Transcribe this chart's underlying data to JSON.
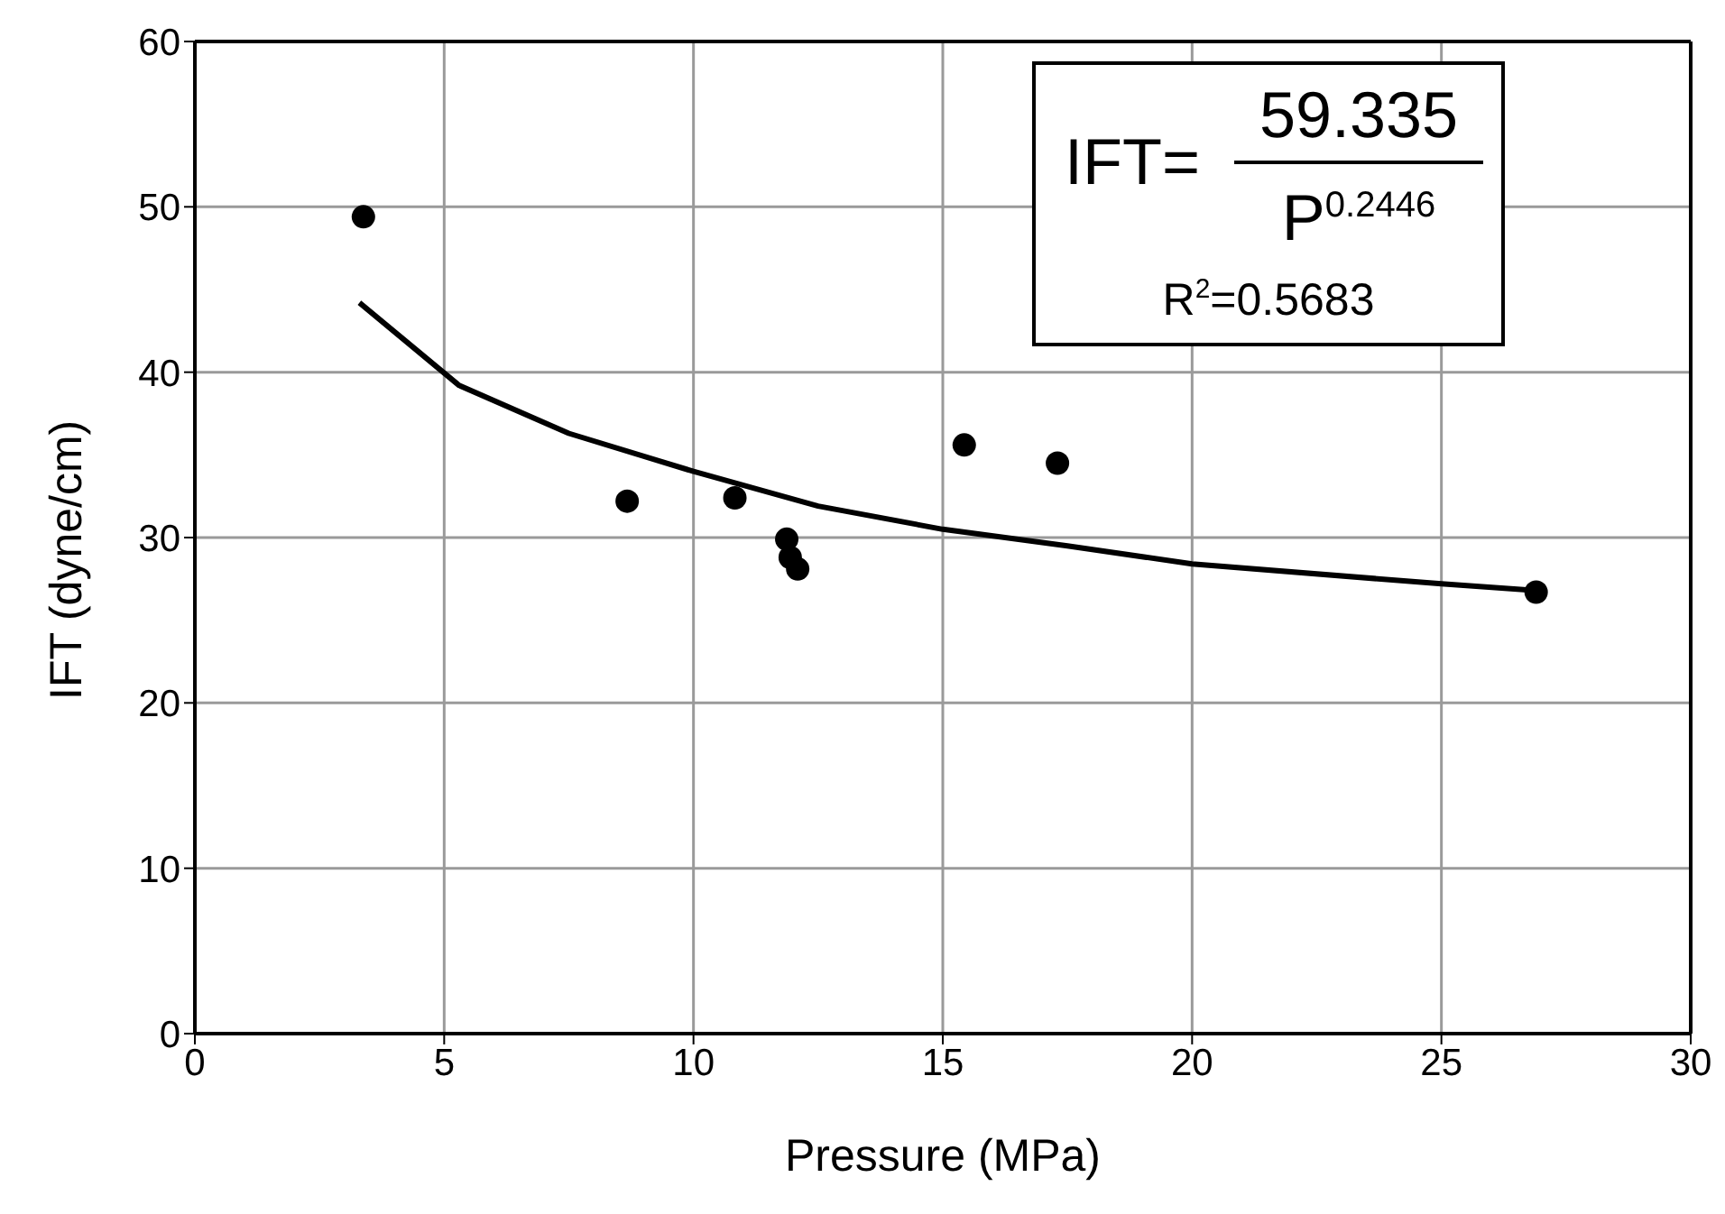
{
  "chart_data": {
    "type": "scatter",
    "xlabel": "Pressure (MPa)",
    "ylabel": "IFT (dyne/cm)",
    "xlim": [
      0,
      30
    ],
    "xticks": [
      0,
      5,
      10,
      15,
      20,
      25,
      30
    ],
    "ylim": [
      0,
      60
    ],
    "yticks": [
      0,
      10,
      20,
      30,
      40,
      50,
      60
    ],
    "grid": true,
    "legend": false,
    "marker": "circle",
    "series": [
      {
        "color": "#000000",
        "x": [
          3.38,
          8.67,
          10.83,
          11.87,
          11.94,
          12.09,
          15.43,
          17.3,
          26.9
        ],
        "values": [
          49.4,
          32.2,
          32.4,
          29.9,
          28.8,
          28.1,
          35.6,
          34.5,
          26.7
        ]
      },
      {
        "type": "line",
        "color": "#000000",
        "marker": "none",
        "line_style": "solid",
        "x": [
          3.3,
          5.3,
          7.5,
          10,
          12.5,
          15,
          17.5,
          20,
          25,
          26.9
        ],
        "values": [
          44.2,
          39.2,
          36.3,
          34.0,
          31.9,
          30.5,
          29.5,
          28.4,
          27.2,
          26.8
        ]
      }
    ],
    "annotations": [
      "IFT=",
      "59.335",
      "P$^{0.2446}$",
      "R$^{2}$=0.5683"
    ]
  }
}
